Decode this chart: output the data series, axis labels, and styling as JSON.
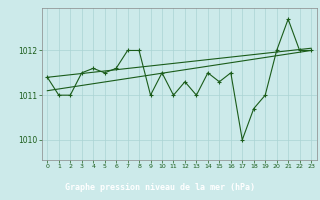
{
  "title": "Graphe pression niveau de la mer (hPa)",
  "x_values": [
    0,
    1,
    2,
    3,
    4,
    5,
    6,
    7,
    8,
    9,
    10,
    11,
    12,
    13,
    14,
    15,
    16,
    17,
    18,
    19,
    20,
    21,
    22,
    23
  ],
  "y_values": [
    1011.4,
    1011.0,
    1011.0,
    1011.5,
    1011.6,
    1011.5,
    1011.6,
    1012.0,
    1012.0,
    1011.0,
    1011.5,
    1011.0,
    1011.3,
    1011.0,
    1011.5,
    1011.3,
    1011.5,
    1010.0,
    1010.7,
    1011.0,
    1012.0,
    1012.7,
    1012.0,
    1012.0
  ],
  "trend1_x": [
    0,
    23
  ],
  "trend1_y": [
    1011.1,
    1012.0
  ],
  "trend2_x": [
    0,
    23
  ],
  "trend2_y": [
    1011.4,
    1012.05
  ],
  "ylim_min": 1009.55,
  "ylim_max": 1012.95,
  "xlim_min": -0.5,
  "xlim_max": 23.5,
  "yticks": [
    1010,
    1011,
    1012
  ],
  "xticks": [
    0,
    1,
    2,
    3,
    4,
    5,
    6,
    7,
    8,
    9,
    10,
    11,
    12,
    13,
    14,
    15,
    16,
    17,
    18,
    19,
    20,
    21,
    22,
    23
  ],
  "bg_color": "#cceaea",
  "grid_color": "#aad4d4",
  "line_color": "#1a5c1a",
  "text_color": "#1a5c1a",
  "bottom_bar_color": "#2d7a2d",
  "bottom_bar_bg": "#1a5c1a"
}
